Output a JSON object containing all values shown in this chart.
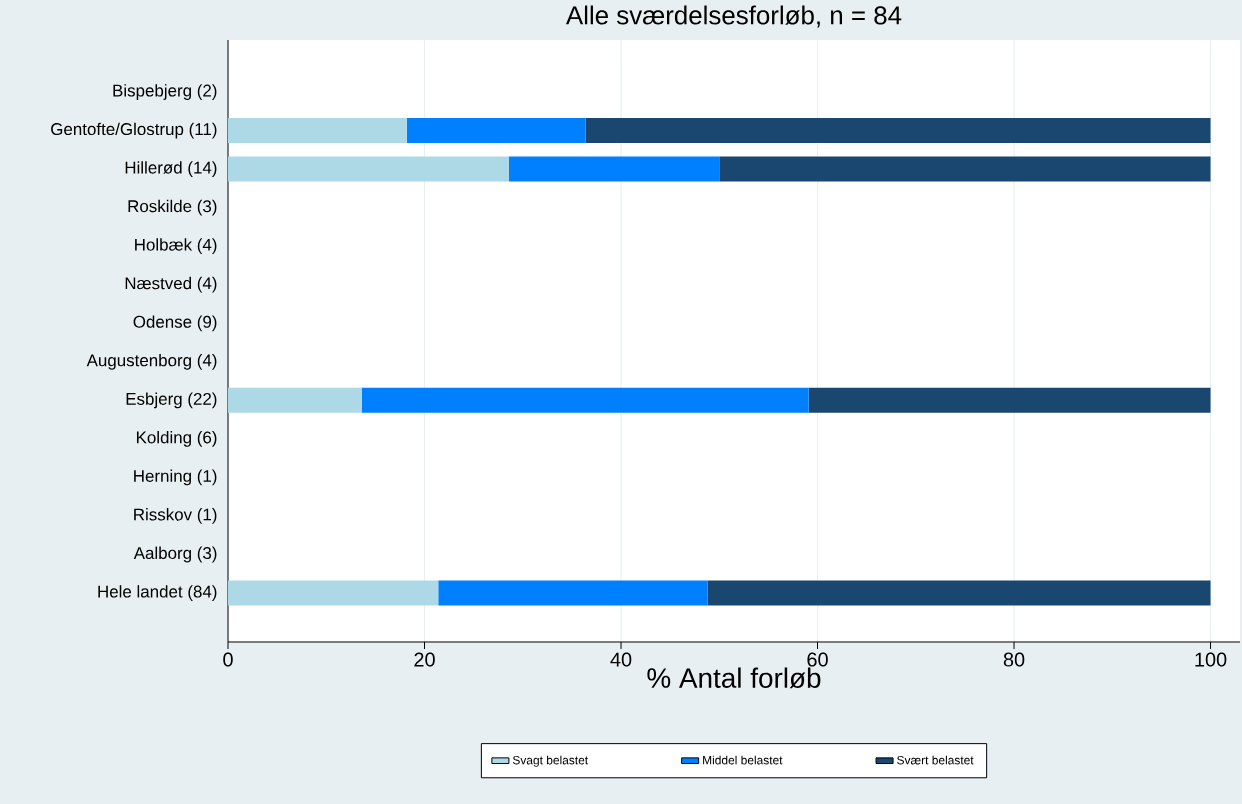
{
  "chart_data": {
    "type": "bar",
    "orientation": "horizontal",
    "stacked": true,
    "title": "Alle sværdelsesforløb, n = 84",
    "xlabel": "% Antal forløb",
    "categories": [
      "Bispebjerg (2)",
      "Gentofte/Glostrup (11)",
      "Hillerød (14)",
      "Roskilde (3)",
      "Holbæk (4)",
      "Næstved (4)",
      "Odense (9)",
      "Augustenborg (4)",
      "Esbjerg (22)",
      "Kolding (6)",
      "Herning (1)",
      "Risskov (1)",
      "Aalborg (3)",
      "Hele landet (84)"
    ],
    "series": [
      {
        "name": "Svagt belastet",
        "color": "#add8e6",
        "values": [
          null,
          18.2,
          28.6,
          null,
          null,
          null,
          null,
          null,
          13.6,
          null,
          null,
          null,
          null,
          21.4
        ]
      },
      {
        "name": "Middel belastet",
        "color": "#0080ff",
        "values": [
          null,
          18.2,
          21.4,
          null,
          null,
          null,
          null,
          null,
          45.5,
          null,
          null,
          null,
          null,
          27.4
        ]
      },
      {
        "name": "Svært belastet",
        "color": "#1a476f",
        "values": [
          null,
          63.6,
          50.0,
          null,
          null,
          null,
          null,
          null,
          40.9,
          null,
          null,
          null,
          null,
          51.2
        ]
      }
    ],
    "xlim": [
      0,
      103
    ],
    "xticks": [
      0,
      20,
      40,
      60,
      80,
      100
    ],
    "grid": "x",
    "legend": "bottom"
  }
}
